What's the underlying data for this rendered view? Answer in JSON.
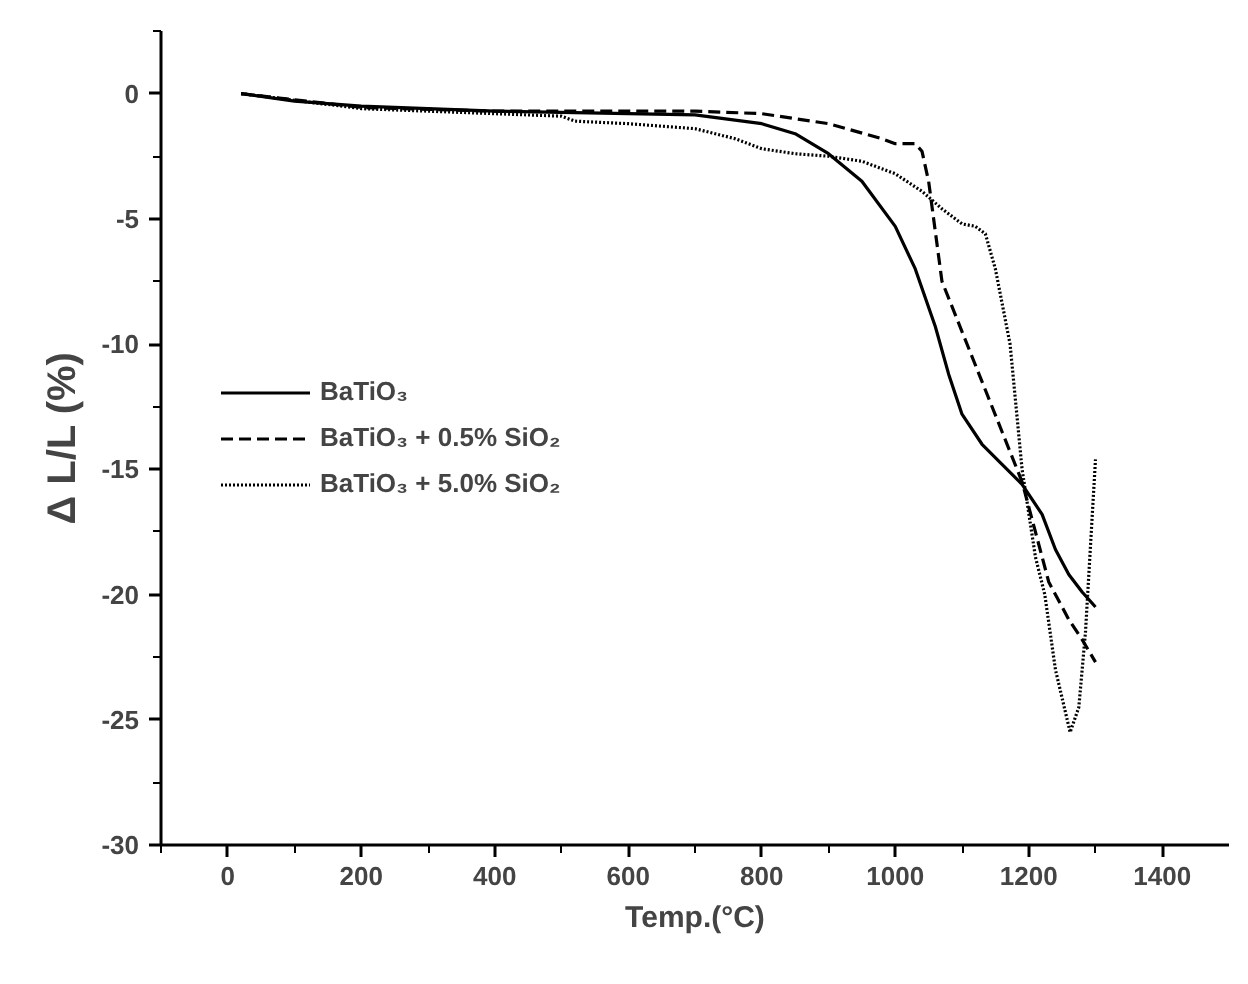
{
  "chart_data": {
    "type": "line",
    "xlabel": "Temp.(°C)",
    "ylabel": "Δ L/L (%)",
    "xlim": [
      -100,
      1500
    ],
    "ylim": [
      -30,
      2.5
    ],
    "xticks": [
      {
        "value": -100,
        "label": null
      },
      0,
      {
        "value": 100,
        "label": null
      },
      200,
      {
        "value": 300,
        "label": null
      },
      400,
      {
        "value": 500,
        "label": null
      },
      600,
      {
        "value": 700,
        "label": null
      },
      800,
      {
        "value": 900,
        "label": null
      },
      1000,
      {
        "value": 1100,
        "label": null
      },
      1200,
      {
        "value": 1300,
        "label": null
      },
      1400
    ],
    "yticks": [
      -30,
      {
        "value": -27.5,
        "label": null
      },
      -25,
      {
        "value": -22.5,
        "label": null
      },
      -20,
      {
        "value": -17.5,
        "label": null
      },
      -15,
      {
        "value": -12.5,
        "label": null
      },
      -10,
      {
        "value": -7.5,
        "label": null
      },
      -5,
      {
        "value": -2.5,
        "label": null
      },
      0,
      {
        "value": 2.5,
        "label": null
      }
    ],
    "grid": false,
    "legend": "left",
    "marker": "none",
    "series": [
      {
        "name": "BaTiO₃",
        "color": "#000000",
        "line_style": "solid",
        "x": [
          20,
          100,
          200,
          400,
          600,
          700,
          800,
          850,
          900,
          950,
          1000,
          1030,
          1060,
          1080,
          1100,
          1130,
          1160,
          1190,
          1220,
          1240,
          1260,
          1280,
          1300
        ],
        "values": [
          0,
          -0.3,
          -0.5,
          -0.7,
          -0.8,
          -0.85,
          -1.2,
          -1.6,
          -2.4,
          -3.5,
          -5.3,
          -7,
          -9.3,
          -11.2,
          -12.8,
          -14,
          -14.8,
          -15.6,
          -16.8,
          -18.2,
          -19.2,
          -19.9,
          -20.5
        ]
      },
      {
        "name": "BaTiO₃ + 0.5% SiO₂",
        "color": "#000000",
        "line_style": "dashed",
        "x": [
          20,
          200,
          400,
          600,
          700,
          800,
          900,
          980,
          1000,
          1030,
          1040,
          1050,
          1060,
          1070,
          1100,
          1130,
          1160,
          1190,
          1210,
          1230,
          1260,
          1280,
          1300
        ],
        "values": [
          0,
          -0.55,
          -0.7,
          -0.7,
          -0.7,
          -0.8,
          -1.2,
          -1.8,
          -2,
          -2,
          -2.3,
          -3.5,
          -5.5,
          -7.5,
          -9.5,
          -11.5,
          -13.5,
          -15.5,
          -17.5,
          -19.5,
          -21,
          -21.8,
          -22.7
        ]
      },
      {
        "name": "BaTiO₃ + 5.0% SiO₂",
        "color": "#000000",
        "line_style": "dotted",
        "x": [
          20,
          200,
          400,
          500,
          520,
          600,
          700,
          760,
          800,
          850,
          900,
          950,
          1000,
          1040,
          1070,
          1100,
          1120,
          1135,
          1150,
          1172,
          1190,
          1210,
          1224,
          1240,
          1262,
          1275,
          1285,
          1300
        ],
        "values": [
          0,
          -0.6,
          -0.8,
          -0.9,
          -1.1,
          -1.2,
          -1.4,
          -1.8,
          -2.2,
          -2.4,
          -2.5,
          -2.7,
          -3.2,
          -3.9,
          -4.6,
          -5.2,
          -5.3,
          -5.6,
          -7,
          -10,
          -15,
          -18.5,
          -20,
          -23,
          -25.5,
          -24.5,
          -21.5,
          -14.6
        ]
      }
    ]
  }
}
